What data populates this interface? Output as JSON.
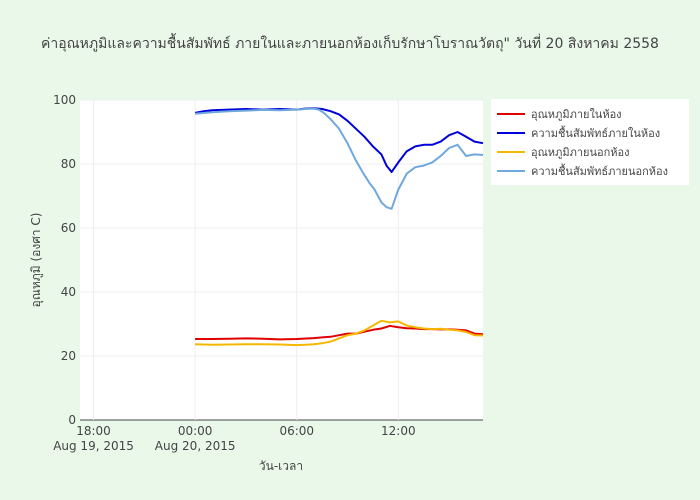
{
  "chart_data": {
    "type": "line",
    "title": "ค่าอุณหภูมิและความชื้นสัมพัทธ์ ภายในและภายนอกห้องเก็บรักษาโบราณวัตถุ\" วันที่ 20 สิงหาคม 2558",
    "xlabel": "วัน-เวลา",
    "ylabel": "อุณหภูมิ (องศา C)",
    "ylim": [
      0,
      100
    ],
    "yticks": [
      0,
      20,
      40,
      60,
      80,
      100
    ],
    "xticks": [
      {
        "t": -6,
        "line1": "18:00",
        "line2": "Aug 19, 2015"
      },
      {
        "t": 0,
        "line1": "00:00",
        "line2": "Aug 20, 2015"
      },
      {
        "t": 6,
        "line1": "06:00",
        "line2": ""
      },
      {
        "t": 12,
        "line1": "12:00",
        "line2": ""
      }
    ],
    "xrange_hours": [
      -6.8,
      17.0
    ],
    "grid": true,
    "legend_position": "right",
    "series": [
      {
        "name": "อุณหภูมิภายในห้อง",
        "color": "#e00000",
        "x": [
          0,
          1,
          2,
          3,
          4,
          5,
          6,
          7,
          7.5,
          8,
          8.5,
          9,
          9.5,
          10,
          10.5,
          11,
          11.5,
          12,
          12.5,
          13,
          13.5,
          14,
          14.5,
          15,
          15.5,
          16,
          16.5,
          17
        ],
        "values": [
          25.3,
          25.3,
          25.4,
          25.5,
          25.4,
          25.2,
          25.3,
          25.6,
          25.8,
          26.0,
          26.5,
          27.0,
          27.0,
          27.6,
          28.2,
          28.6,
          29.4,
          29.0,
          28.7,
          28.6,
          28.4,
          28.4,
          28.3,
          28.3,
          28.2,
          28.0,
          27.0,
          26.8
        ]
      },
      {
        "name": "ความชื้นสัมพัทธ์ภายในห้อง",
        "color": "#0000dd",
        "x": [
          0,
          0.5,
          1,
          2,
          3,
          4,
          5,
          6,
          6.5,
          7,
          7.5,
          8,
          8.5,
          9,
          9.5,
          10,
          10.5,
          11,
          11.3,
          11.6,
          12,
          12.5,
          13,
          13.5,
          14,
          14.5,
          15,
          15.5,
          16,
          16.5,
          17
        ],
        "values": [
          96,
          96.5,
          96.8,
          97,
          97.2,
          97.0,
          97.2,
          97.0,
          97.3,
          97.4,
          97.2,
          96.5,
          95.5,
          93.5,
          91.0,
          88.5,
          85.5,
          83.0,
          79.5,
          77.5,
          80.5,
          84.0,
          85.5,
          86.0,
          86.0,
          87.0,
          89.0,
          90.0,
          88.5,
          87.0,
          86.5
        ]
      },
      {
        "name": "อุณหภูมิภายนอกห้อง",
        "color": "#f5b800",
        "x": [
          0,
          1,
          2,
          3,
          4,
          5,
          6,
          6.5,
          7,
          7.5,
          8,
          8.5,
          9,
          9.5,
          10,
          10.5,
          11,
          11.5,
          12,
          12.5,
          13,
          13.5,
          14,
          14.5,
          15,
          15.5,
          16,
          16.5,
          17
        ],
        "values": [
          23.7,
          23.5,
          23.6,
          23.7,
          23.7,
          23.6,
          23.4,
          23.5,
          23.7,
          24.0,
          24.5,
          25.5,
          26.5,
          27.0,
          28.0,
          29.5,
          31.0,
          30.5,
          30.8,
          29.5,
          29.0,
          28.6,
          28.4,
          28.5,
          28.2,
          28.0,
          27.5,
          26.5,
          26.4
        ]
      },
      {
        "name": "ความชื้นสัมพัทธ์ภายนอกห้อง",
        "color": "#6fa8dc",
        "x": [
          0,
          1,
          2,
          3,
          4,
          5,
          6,
          6.5,
          7,
          7.3,
          7.6,
          8,
          8.5,
          9,
          9.5,
          10,
          10.3,
          10.6,
          11,
          11.3,
          11.6,
          12,
          12.5,
          13,
          13.5,
          14,
          14.5,
          15,
          15.5,
          16,
          16.5,
          17
        ],
        "values": [
          95.7,
          96.2,
          96.5,
          96.7,
          96.9,
          96.8,
          97.0,
          97.2,
          97.3,
          97.0,
          96.0,
          94.0,
          91.0,
          86.5,
          81.0,
          76.5,
          74.0,
          72.0,
          68.0,
          66.5,
          66.0,
          72.0,
          77.0,
          79.0,
          79.5,
          80.5,
          82.5,
          85.0,
          86.0,
          82.5,
          83.0,
          82.8
        ]
      }
    ]
  }
}
